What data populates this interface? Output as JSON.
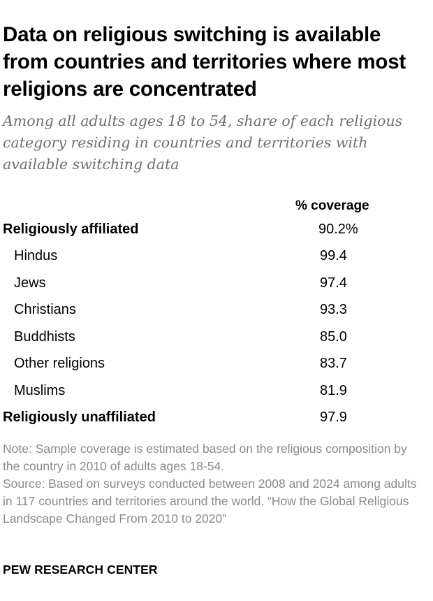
{
  "header": {
    "title": "Data on religious switching is available from countries and territories where most religions are concentrated",
    "subtitle": "Among all adults ages 18 to 54, share of each religious category residing in countries and territories with available switching data"
  },
  "table": {
    "column_header": "% coverage",
    "rows": [
      {
        "label": "Religiously affiliated",
        "value": "90.2%"
      },
      {
        "label": "Hindus",
        "value": "99.4"
      },
      {
        "label": "Jews",
        "value": "97.4"
      },
      {
        "label": "Christians",
        "value": "93.3"
      },
      {
        "label": "Buddhists",
        "value": "85.0"
      },
      {
        "label": "Other religions",
        "value": "83.7"
      },
      {
        "label": "Muslims",
        "value": "81.9"
      },
      {
        "label": "Religiously unaffiliated",
        "value": "97.9"
      }
    ]
  },
  "footer": {
    "note": "Note: Sample coverage is estimated based on the religious composition by the country in 2010 of adults ages 18-54.",
    "source": "Source: Based on surveys conducted between 2008 and 2024 among adults in 117 countries and territories around the world. “How the Global Religious Landscape Changed From 2010 to 2020”",
    "brand": "PEW RESEARCH CENTER"
  },
  "colors": {
    "text": "#000000",
    "subtitle": "#6f6f6f",
    "note": "#8a8a8a"
  }
}
